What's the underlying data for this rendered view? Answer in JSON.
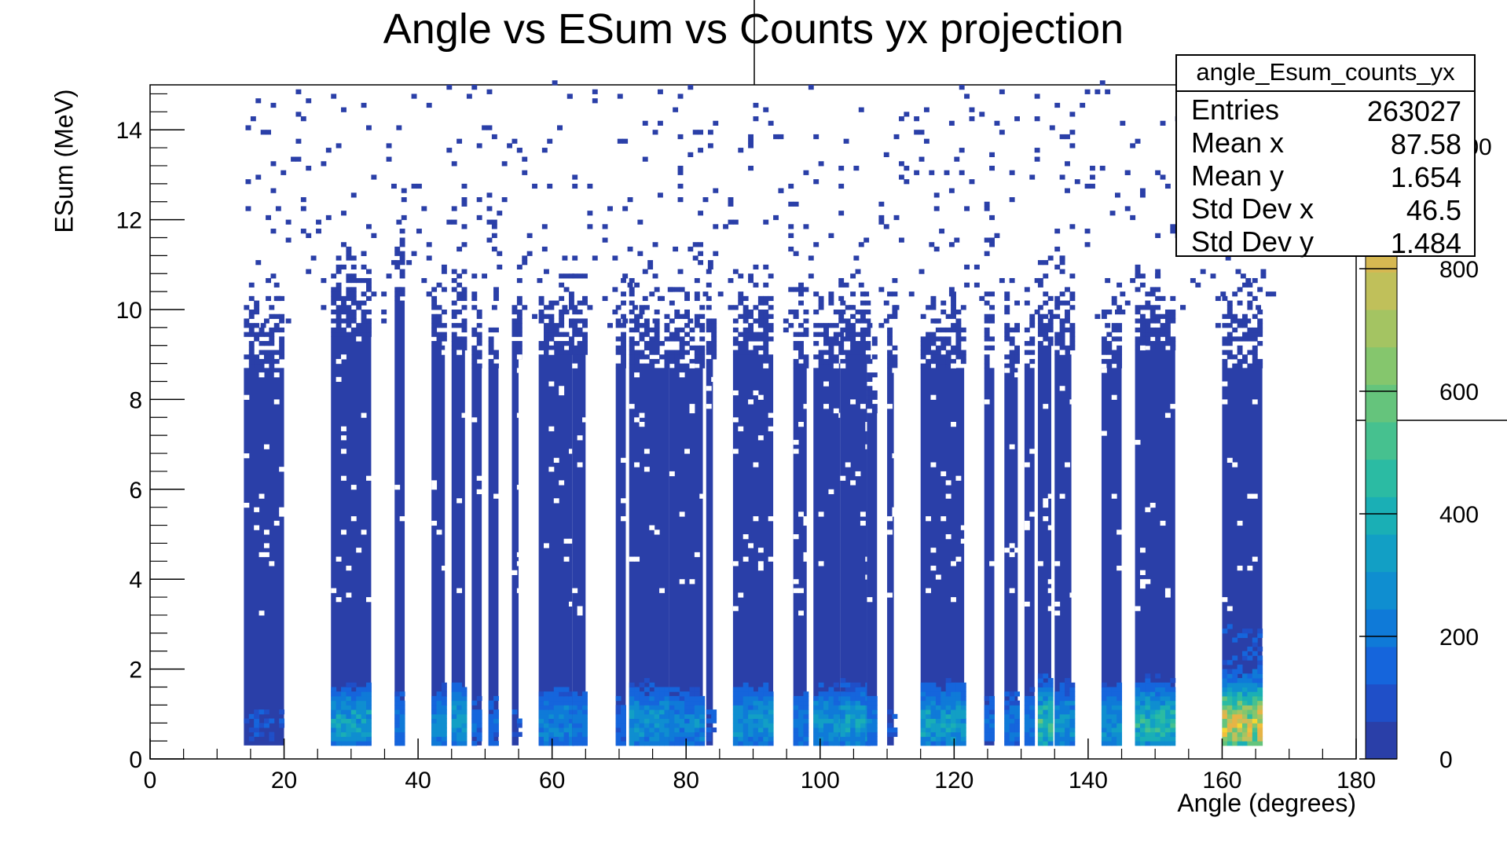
{
  "chart_data": {
    "type": "heatmap",
    "title": "Angle vs ESum vs Counts yx projection",
    "xlabel": "Angle (degrees)",
    "ylabel": "ESum (MeV)",
    "xlim": [
      0,
      180
    ],
    "ylim": [
      0,
      15
    ],
    "zlim": [
      0,
      1100
    ],
    "x_ticks": [
      0,
      20,
      40,
      60,
      80,
      100,
      120,
      140,
      160,
      180
    ],
    "y_ticks": [
      0,
      2,
      4,
      6,
      8,
      10,
      12,
      14
    ],
    "z_ticks": [
      0,
      200,
      400,
      600,
      800,
      1000
    ],
    "grid": false,
    "colormap": "kBird",
    "colors": {
      "base": "#2a3fa8",
      "palette": [
        "#2a3fa8",
        "#1f4fc8",
        "#1565dc",
        "#0f7ad8",
        "#0f8ed0",
        "#129fc5",
        "#1aafb5",
        "#2bbba3",
        "#46c18f",
        "#65c47c",
        "#85c66d",
        "#a4c462",
        "#c0c05a",
        "#d6b852",
        "#e6b446",
        "#f1bf3b",
        "#f6d531",
        "#f9fb0e"
      ]
    },
    "angle_bands": [
      {
        "x": [
          14,
          20
        ],
        "ymax": 9.0,
        "hot": 0.1
      },
      {
        "x": [
          27,
          33
        ],
        "ymax": 9.7,
        "hot": 0.35
      },
      {
        "x": [
          36.5,
          38
        ],
        "ymax": 10.5,
        "hot": 0.2
      },
      {
        "x": [
          42,
          44
        ],
        "ymax": 9.5,
        "hot": 0.25
      },
      {
        "x": [
          45,
          47
        ],
        "ymax": 9.4,
        "hot": 0.35
      },
      {
        "x": [
          48,
          49.5
        ],
        "ymax": 9.0,
        "hot": 0.15
      },
      {
        "x": [
          50.5,
          52
        ],
        "ymax": 9.0,
        "hot": 0.15
      },
      {
        "x": [
          54,
          55
        ],
        "ymax": 9.2,
        "hot": 0.1
      },
      {
        "x": [
          58,
          63
        ],
        "ymax": 9.3,
        "hot": 0.25
      },
      {
        "x": [
          63,
          65
        ],
        "ymax": 9.3,
        "hot": 0.2
      },
      {
        "x": [
          69.5,
          71
        ],
        "ymax": 9.0,
        "hot": 0.15
      },
      {
        "x": [
          71.5,
          77.5
        ],
        "ymax": 9.0,
        "hot": 0.3
      },
      {
        "x": [
          77.5,
          82.5
        ],
        "ymax": 9.0,
        "hot": 0.25
      },
      {
        "x": [
          83,
          84
        ],
        "ymax": 9.2,
        "hot": 0.1
      },
      {
        "x": [
          87,
          93
        ],
        "ymax": 9.3,
        "hot": 0.3
      },
      {
        "x": [
          96,
          98
        ],
        "ymax": 9.0,
        "hot": 0.2
      },
      {
        "x": [
          99,
          103
        ],
        "ymax": 9.0,
        "hot": 0.3
      },
      {
        "x": [
          103,
          107
        ],
        "ymax": 9.2,
        "hot": 0.35
      },
      {
        "x": [
          107,
          108.5
        ],
        "ymax": 8.0,
        "hot": 0.2
      },
      {
        "x": [
          110,
          111
        ],
        "ymax": 9.0,
        "hot": 0.1
      },
      {
        "x": [
          115,
          121.5
        ],
        "ymax": 9.0,
        "hot": 0.35
      },
      {
        "x": [
          124.5,
          126
        ],
        "ymax": 9.0,
        "hot": 0.15
      },
      {
        "x": [
          127.5,
          129.5
        ],
        "ymax": 9.0,
        "hot": 0.2
      },
      {
        "x": [
          130.5,
          132
        ],
        "ymax": 9.0,
        "hot": 0.2
      },
      {
        "x": [
          132.5,
          134.5
        ],
        "ymax": 9.5,
        "hot": 0.5
      },
      {
        "x": [
          135,
          137.5
        ],
        "ymax": 9.3,
        "hot": 0.3
      },
      {
        "x": [
          142,
          145
        ],
        "ymax": 9.0,
        "hot": 0.3
      },
      {
        "x": [
          147,
          153
        ],
        "ymax": 9.4,
        "hot": 0.45
      },
      {
        "x": [
          160,
          166
        ],
        "ymax": 9.0,
        "hot": 0.9
      }
    ]
  },
  "stats_box": {
    "name": "angle_Esum_counts_yx",
    "rows": [
      {
        "label": "Entries",
        "value": "263027"
      },
      {
        "label": "Mean x",
        "value": "87.58"
      },
      {
        "label": "Mean y",
        "value": "1.654"
      },
      {
        "label": "Std Dev x",
        "value": "46.5"
      },
      {
        "label": "Std Dev y",
        "value": "1.484"
      }
    ]
  }
}
